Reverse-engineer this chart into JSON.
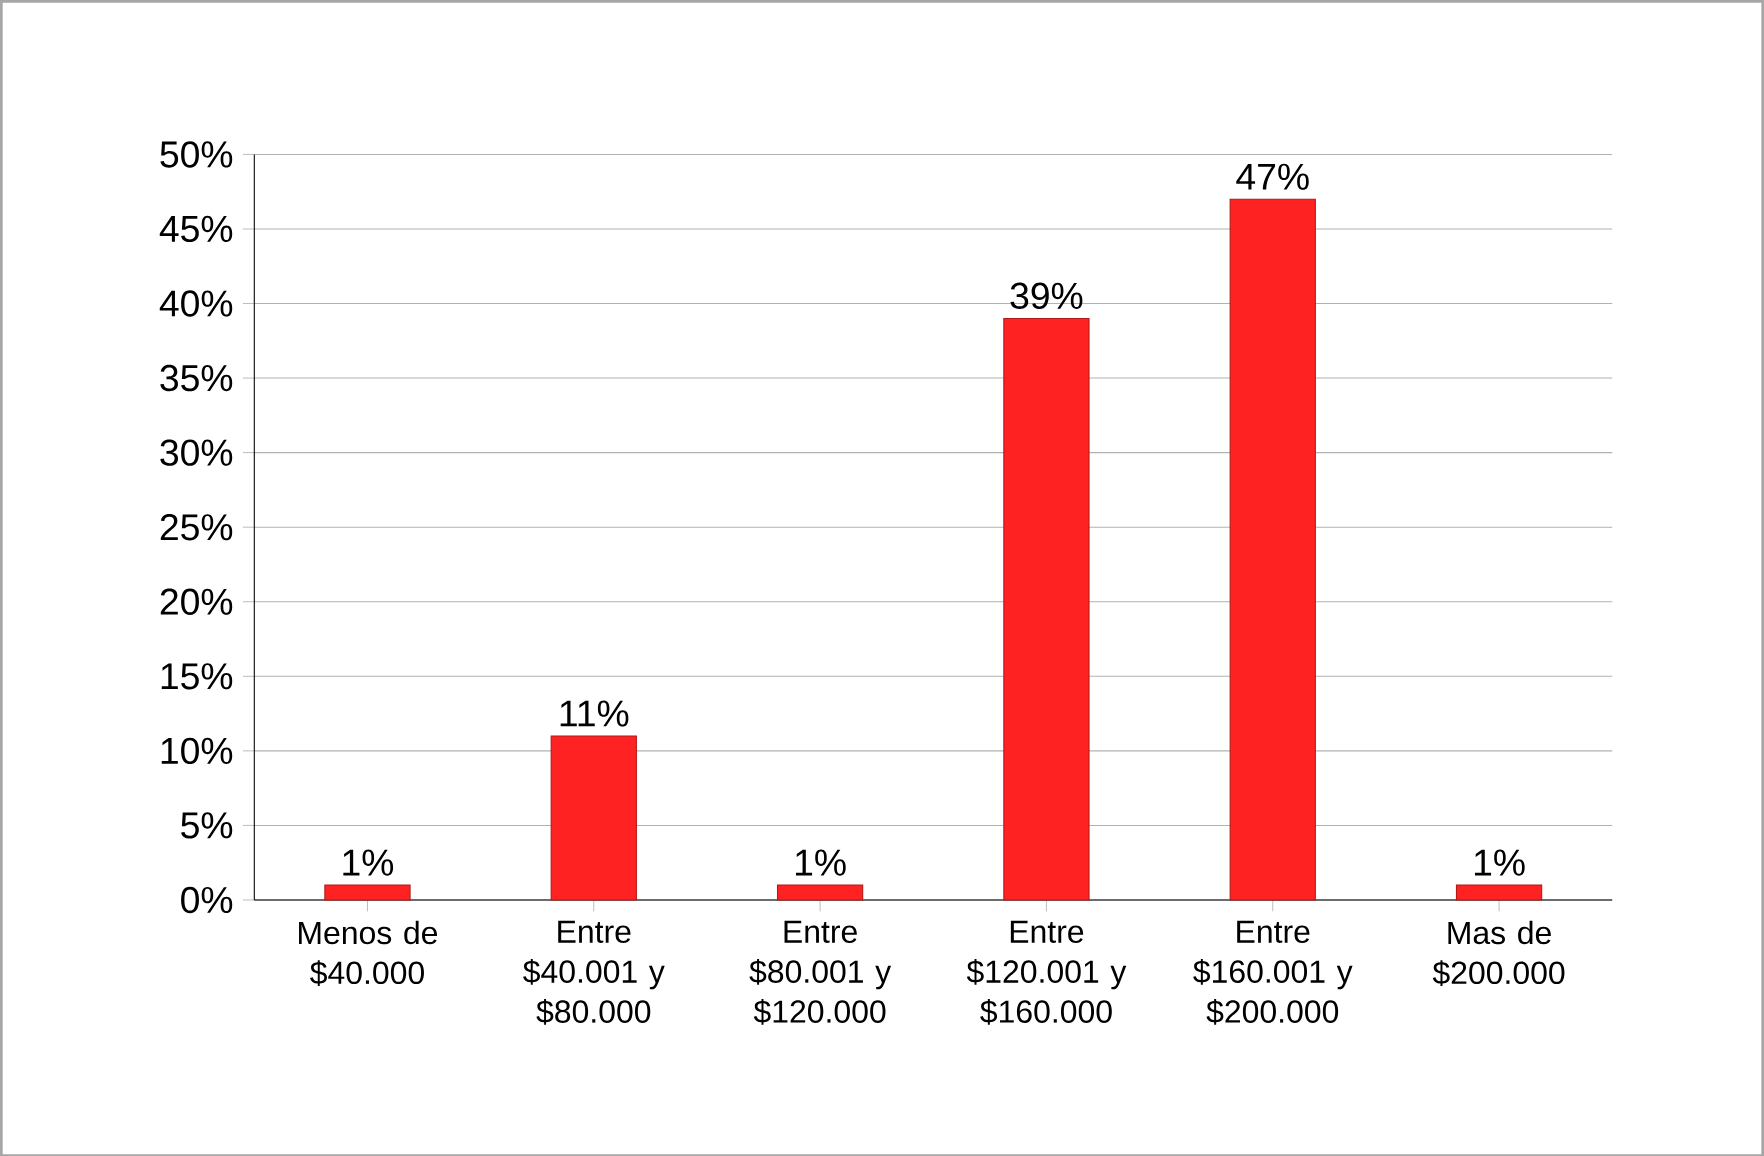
{
  "chart_data": {
    "type": "bar",
    "categories": [
      "Menos de $40.000",
      "Entre $40.001 y $80.000",
      "Entre $80.001 y $120.000",
      "Entre $120.001 y $160.000",
      "Entre $160.001 y $200.000",
      "Mas de $200.000"
    ],
    "values": [
      1,
      11,
      1,
      39,
      47,
      1
    ],
    "value_labels": [
      "1%",
      "11%",
      "1%",
      "39%",
      "47%",
      "1%"
    ],
    "color": "#ff2222",
    "ylim": [
      0,
      50
    ],
    "yticks": [
      {
        "value": 0,
        "label": "0%"
      },
      {
        "value": 5,
        "label": "5%"
      },
      {
        "value": 10,
        "label": "10%"
      },
      {
        "value": 15,
        "label": "15%"
      },
      {
        "value": 20,
        "label": "20%"
      },
      {
        "value": 25,
        "label": "25%"
      },
      {
        "value": 30,
        "label": "30%"
      },
      {
        "value": 35,
        "label": "35%"
      },
      {
        "value": 40,
        "label": "40%"
      },
      {
        "value": 45,
        "label": "45%"
      },
      {
        "value": 50,
        "label": "50%"
      }
    ],
    "grid": "y"
  }
}
